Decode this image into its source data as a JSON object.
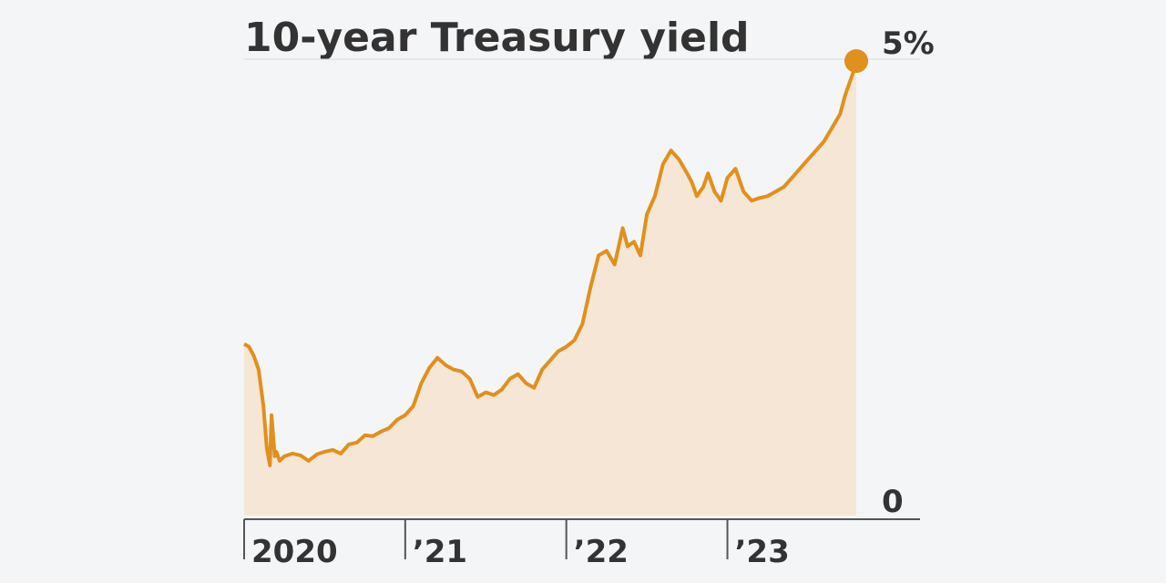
{
  "chart_data": {
    "type": "area",
    "title": "10-year Treasury yield",
    "xlabel": "",
    "ylabel": "",
    "ylim": [
      0,
      5
    ],
    "y_ticks": [
      {
        "value": 0,
        "label": "0"
      },
      {
        "value": 5,
        "label": "5%"
      }
    ],
    "x_ticks": [
      {
        "value": 2020.0,
        "label": "2020"
      },
      {
        "value": 2021.0,
        "label": "’21"
      },
      {
        "value": 2022.0,
        "label": "’22"
      },
      {
        "value": 2023.0,
        "label": "’23"
      }
    ],
    "xlim": [
      2020.0,
      2023.8
    ],
    "grid": false,
    "colors": {
      "line": "#e0901c",
      "fill": "#f5e6d5",
      "axis": "#555555",
      "background": "#f4f5f7",
      "text": "#333333"
    },
    "series": [
      {
        "x": [
          2020.0,
          2020.03,
          2020.06,
          2020.09,
          2020.12,
          2020.14,
          2020.16,
          2020.17,
          2020.19,
          2020.2,
          2020.22,
          2020.25,
          2020.3,
          2020.35,
          2020.4,
          2020.45,
          2020.5,
          2020.55,
          2020.6,
          2020.65,
          2020.7,
          2020.75,
          2020.8,
          2020.85,
          2020.9,
          2020.95,
          2021.0,
          2021.05,
          2021.1,
          2021.15,
          2021.2,
          2021.25,
          2021.3,
          2021.35,
          2021.4,
          2021.45,
          2021.5,
          2021.55,
          2021.6,
          2021.65,
          2021.7,
          2021.75,
          2021.8,
          2021.85,
          2021.9,
          2021.95,
          2022.0,
          2022.05,
          2022.1,
          2022.15,
          2022.2,
          2022.25,
          2022.3,
          2022.35,
          2022.38,
          2022.42,
          2022.46,
          2022.5,
          2022.55,
          2022.6,
          2022.65,
          2022.7,
          2022.75,
          2022.78,
          2022.81,
          2022.85,
          2022.88,
          2022.92,
          2022.96,
          2023.0,
          2023.05,
          2023.1,
          2023.15,
          2023.2,
          2023.25,
          2023.3,
          2023.35,
          2023.4,
          2023.45,
          2023.5,
          2023.55,
          2023.6,
          2023.65,
          2023.7,
          2023.73,
          2023.76,
          2023.78,
          2023.8
        ],
        "values": [
          1.88,
          1.85,
          1.75,
          1.6,
          1.2,
          0.75,
          0.55,
          1.1,
          0.65,
          0.7,
          0.6,
          0.65,
          0.68,
          0.66,
          0.6,
          0.67,
          0.7,
          0.72,
          0.68,
          0.78,
          0.8,
          0.88,
          0.87,
          0.92,
          0.96,
          1.05,
          1.1,
          1.2,
          1.45,
          1.62,
          1.73,
          1.65,
          1.6,
          1.58,
          1.5,
          1.3,
          1.35,
          1.32,
          1.38,
          1.5,
          1.55,
          1.45,
          1.4,
          1.6,
          1.7,
          1.8,
          1.85,
          1.92,
          2.1,
          2.5,
          2.85,
          2.9,
          2.75,
          3.15,
          2.95,
          3.0,
          2.85,
          3.3,
          3.5,
          3.85,
          4.0,
          3.9,
          3.75,
          3.65,
          3.5,
          3.6,
          3.75,
          3.55,
          3.45,
          3.7,
          3.8,
          3.55,
          3.45,
          3.48,
          3.5,
          3.55,
          3.6,
          3.7,
          3.8,
          3.9,
          4.0,
          4.1,
          4.25,
          4.4,
          4.6,
          4.75,
          4.85,
          4.98
        ]
      }
    ]
  }
}
